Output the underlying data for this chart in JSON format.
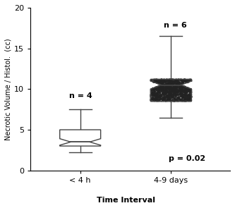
{
  "group1": {
    "label": "< 4 h",
    "n_label": "n = 4",
    "median": 3.5,
    "q1": 3.0,
    "q3": 5.0,
    "whisker_low": 2.2,
    "whisker_high": 7.5,
    "notch_low": 3.1,
    "notch_high": 3.9,
    "x": 1
  },
  "group2": {
    "label": "4-9 days",
    "n_label": "n = 6",
    "median": 10.5,
    "q1": 8.5,
    "q3": 11.2,
    "whisker_low": 6.5,
    "whisker_high": 16.5,
    "notch_low": 10.0,
    "notch_high": 11.0,
    "x": 2
  },
  "ylabel": "Necrotic Volume / Histol.  (cc)",
  "xlabel": "Time Interval",
  "ylim": [
    0,
    20
  ],
  "yticks": [
    0,
    5,
    10,
    15,
    20
  ],
  "p_label": "p = 0.02",
  "background_color": "#ffffff",
  "box_color": "#ffffff",
  "box_edge_color": "#444444",
  "whisker_color": "#444444",
  "shade_color": "#888888",
  "box_width": 0.45,
  "notch_indent": 0.12
}
